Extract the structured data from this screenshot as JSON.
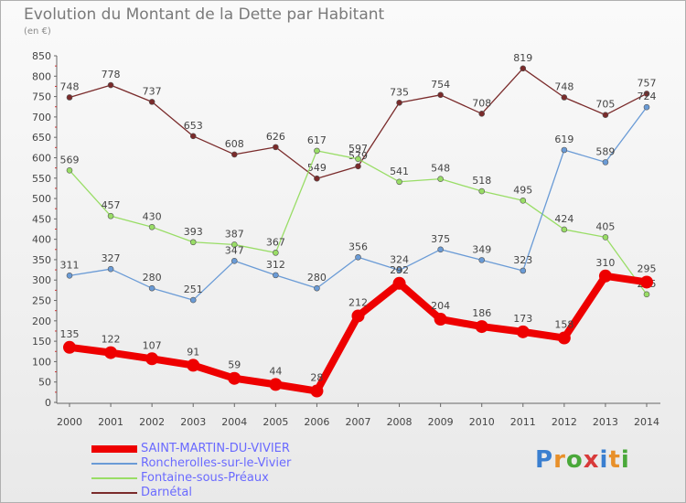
{
  "title": "Evolution du Montant de la Dette par Habitant",
  "unit": "(en €)",
  "logo": {
    "text": "Proxiti",
    "colors": [
      "#3a7fd0",
      "#e8902a",
      "#4aa83a",
      "#d83a3a",
      "#3a7fd0",
      "#e8902a",
      "#4aa83a"
    ]
  },
  "chart_data": {
    "type": "line",
    "title": "Evolution du Montant de la Dette par Habitant",
    "ylabel": "(en €)",
    "xlabel": "",
    "x": [
      "2000",
      "2001",
      "2002",
      "2003",
      "2004",
      "2005",
      "2006",
      "2007",
      "2008",
      "2009",
      "2010",
      "2011",
      "2012",
      "2013",
      "2014"
    ],
    "ylim": [
      0,
      850
    ],
    "yticks": [
      0,
      50,
      100,
      150,
      200,
      250,
      300,
      350,
      400,
      450,
      500,
      550,
      600,
      650,
      700,
      750,
      800,
      850
    ],
    "grid": false,
    "legend_position": "bottom-left",
    "series": [
      {
        "name": "SAINT-MARTIN-DU-VIVIER",
        "color": "#ee0000",
        "width": 8,
        "marker": 7,
        "values": [
          135,
          122,
          107,
          91,
          59,
          44,
          28,
          212,
          292,
          204,
          186,
          173,
          158,
          310,
          295
        ],
        "labels": [
          "135",
          "122",
          "107",
          "91",
          "59",
          "44",
          "28",
          "212",
          "292",
          "204",
          "186",
          "173",
          "158",
          "310",
          "295"
        ]
      },
      {
        "name": "Roncherolles-sur-le-Vivier",
        "color": "#6a9bd6",
        "width": 1.3,
        "marker": 3,
        "values": [
          311,
          327,
          280,
          251,
          347,
          312,
          280,
          356,
          324,
          375,
          349,
          323,
          619,
          589,
          724
        ],
        "labels": [
          "311",
          "327",
          "280",
          "251",
          "347",
          "312",
          "280",
          "356",
          "324",
          "375",
          "349",
          "323",
          "619",
          "589",
          "724"
        ]
      },
      {
        "name": "Fontaine-sous-Préaux",
        "color": "#99dd66",
        "width": 1.3,
        "marker": 3,
        "values": [
          569,
          457,
          430,
          393,
          387,
          367,
          617,
          597,
          541,
          548,
          518,
          495,
          424,
          405,
          265
        ],
        "labels": [
          "569",
          "457",
          "430",
          "393",
          "387",
          "367",
          "617",
          "597",
          "541",
          "548",
          "518",
          "495",
          "424",
          "405",
          "265"
        ]
      },
      {
        "name": "Darnétal",
        "color": "#7a2b2b",
        "width": 1.3,
        "marker": 3,
        "values": [
          748,
          778,
          737,
          653,
          608,
          626,
          549,
          579,
          735,
          754,
          708,
          819,
          748,
          705,
          757
        ],
        "labels": [
          "748",
          "778",
          "737",
          "653",
          "608",
          "626",
          "549",
          "579",
          "735",
          "754",
          "708",
          "819",
          "748",
          "705",
          "757"
        ]
      }
    ]
  }
}
